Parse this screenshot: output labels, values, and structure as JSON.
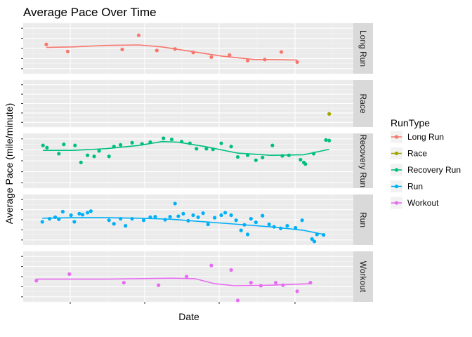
{
  "chart_data": {
    "type": "scatter",
    "title": "Average Pace Over Time",
    "xlabel": "Date",
    "ylabel": "Average Pace (mile/minute)",
    "xlim": [
      0,
      1
    ],
    "ylim": [
      0,
      1
    ],
    "grid": true,
    "legend": {
      "title": "RunType",
      "position": "right"
    },
    "facets": [
      "Long Run",
      "Race",
      "Recovery Run",
      "Run",
      "Workout"
    ],
    "series": [
      {
        "name": "Long Run",
        "facet": "Long Run",
        "color": "#F8766D",
        "points": [
          [
            0.07,
            0.58
          ],
          [
            0.135,
            0.44
          ],
          [
            0.3,
            0.48
          ],
          [
            0.35,
            0.76
          ],
          [
            0.405,
            0.46
          ],
          [
            0.46,
            0.49
          ],
          [
            0.515,
            0.42
          ],
          [
            0.57,
            0.33
          ],
          [
            0.625,
            0.37
          ],
          [
            0.68,
            0.26
          ],
          [
            0.732,
            0.28
          ],
          [
            0.782,
            0.43
          ],
          [
            0.83,
            0.23
          ]
        ],
        "smooth": [
          [
            0.07,
            0.52
          ],
          [
            0.15,
            0.53
          ],
          [
            0.25,
            0.56
          ],
          [
            0.35,
            0.57
          ],
          [
            0.42,
            0.53
          ],
          [
            0.5,
            0.45
          ],
          [
            0.6,
            0.35
          ],
          [
            0.7,
            0.28
          ],
          [
            0.76,
            0.28
          ],
          [
            0.83,
            0.27
          ]
        ]
      },
      {
        "name": "Race",
        "facet": "Race",
        "color": "#A3A500",
        "points": [
          [
            0.927,
            0.28
          ]
        ],
        "smooth": []
      },
      {
        "name": "Recovery Run",
        "facet": "Recovery Run",
        "color": "#00BF7D",
        "points": [
          [
            0.06,
            0.78
          ],
          [
            0.072,
            0.74
          ],
          [
            0.108,
            0.63
          ],
          [
            0.123,
            0.8
          ],
          [
            0.157,
            0.78
          ],
          [
            0.175,
            0.47
          ],
          [
            0.195,
            0.6
          ],
          [
            0.215,
            0.58
          ],
          [
            0.23,
            0.68
          ],
          [
            0.26,
            0.58
          ],
          [
            0.275,
            0.76
          ],
          [
            0.295,
            0.79
          ],
          [
            0.33,
            0.83
          ],
          [
            0.36,
            0.81
          ],
          [
            0.385,
            0.84
          ],
          [
            0.425,
            0.91
          ],
          [
            0.45,
            0.89
          ],
          [
            0.48,
            0.85
          ],
          [
            0.505,
            0.82
          ],
          [
            0.525,
            0.72
          ],
          [
            0.555,
            0.72
          ],
          [
            0.575,
            0.71
          ],
          [
            0.6,
            0.82
          ],
          [
            0.63,
            0.76
          ],
          [
            0.65,
            0.57
          ],
          [
            0.68,
            0.6
          ],
          [
            0.705,
            0.51
          ],
          [
            0.725,
            0.56
          ],
          [
            0.755,
            0.78
          ],
          [
            0.785,
            0.59
          ],
          [
            0.805,
            0.6
          ],
          [
            0.84,
            0.52
          ],
          [
            0.85,
            0.47
          ],
          [
            0.855,
            0.44
          ],
          [
            0.88,
            0.63
          ],
          [
            0.917,
            0.88
          ],
          [
            0.927,
            0.87
          ]
        ],
        "smooth": [
          [
            0.06,
            0.69
          ],
          [
            0.15,
            0.69
          ],
          [
            0.25,
            0.72
          ],
          [
            0.35,
            0.78
          ],
          [
            0.42,
            0.85
          ],
          [
            0.47,
            0.84
          ],
          [
            0.55,
            0.76
          ],
          [
            0.65,
            0.64
          ],
          [
            0.75,
            0.6
          ],
          [
            0.85,
            0.61
          ],
          [
            0.927,
            0.71
          ]
        ]
      },
      {
        "name": "Run",
        "facet": "Run",
        "color": "#00B0F6",
        "points": [
          [
            0.058,
            0.46
          ],
          [
            0.08,
            0.52
          ],
          [
            0.097,
            0.55
          ],
          [
            0.108,
            0.51
          ],
          [
            0.12,
            0.66
          ],
          [
            0.145,
            0.59
          ],
          [
            0.155,
            0.46
          ],
          [
            0.17,
            0.62
          ],
          [
            0.18,
            0.6
          ],
          [
            0.195,
            0.64
          ],
          [
            0.205,
            0.67
          ],
          [
            0.26,
            0.49
          ],
          [
            0.275,
            0.42
          ],
          [
            0.295,
            0.52
          ],
          [
            0.31,
            0.38
          ],
          [
            0.33,
            0.52
          ],
          [
            0.365,
            0.49
          ],
          [
            0.385,
            0.55
          ],
          [
            0.4,
            0.56
          ],
          [
            0.43,
            0.5
          ],
          [
            0.445,
            0.56
          ],
          [
            0.46,
            0.82
          ],
          [
            0.47,
            0.57
          ],
          [
            0.485,
            0.62
          ],
          [
            0.5,
            0.48
          ],
          [
            0.515,
            0.59
          ],
          [
            0.53,
            0.55
          ],
          [
            0.545,
            0.63
          ],
          [
            0.56,
            0.41
          ],
          [
            0.58,
            0.54
          ],
          [
            0.6,
            0.59
          ],
          [
            0.612,
            0.64
          ],
          [
            0.63,
            0.59
          ],
          [
            0.645,
            0.49
          ],
          [
            0.66,
            0.29
          ],
          [
            0.67,
            0.4
          ],
          [
            0.68,
            0.21
          ],
          [
            0.69,
            0.52
          ],
          [
            0.705,
            0.45
          ],
          [
            0.725,
            0.58
          ],
          [
            0.745,
            0.41
          ],
          [
            0.76,
            0.36
          ],
          [
            0.78,
            0.33
          ],
          [
            0.8,
            0.38
          ],
          [
            0.825,
            0.34
          ],
          [
            0.845,
            0.49
          ],
          [
            0.875,
            0.12
          ],
          [
            0.882,
            0.07
          ],
          [
            0.89,
            0.21
          ],
          [
            0.91,
            0.2
          ]
        ],
        "smooth": [
          [
            0.058,
            0.53
          ],
          [
            0.15,
            0.54
          ],
          [
            0.25,
            0.54
          ],
          [
            0.35,
            0.53
          ],
          [
            0.45,
            0.51
          ],
          [
            0.55,
            0.46
          ],
          [
            0.65,
            0.41
          ],
          [
            0.75,
            0.36
          ],
          [
            0.85,
            0.29
          ],
          [
            0.91,
            0.21
          ]
        ]
      },
      {
        "name": "Workout",
        "facet": "Workout",
        "color": "#E76BF3",
        "points": [
          [
            0.04,
            0.42
          ],
          [
            0.14,
            0.55
          ],
          [
            0.305,
            0.38
          ],
          [
            0.41,
            0.33
          ],
          [
            0.495,
            0.5
          ],
          [
            0.57,
            0.72
          ],
          [
            0.63,
            0.63
          ],
          [
            0.65,
            0.03
          ],
          [
            0.69,
            0.38
          ],
          [
            0.72,
            0.32
          ],
          [
            0.765,
            0.38
          ],
          [
            0.787,
            0.33
          ],
          [
            0.83,
            0.21
          ],
          [
            0.87,
            0.38
          ]
        ],
        "smooth": [
          [
            0.04,
            0.45
          ],
          [
            0.15,
            0.45
          ],
          [
            0.25,
            0.45
          ],
          [
            0.35,
            0.46
          ],
          [
            0.45,
            0.47
          ],
          [
            0.52,
            0.46
          ],
          [
            0.58,
            0.36
          ],
          [
            0.64,
            0.32
          ],
          [
            0.75,
            0.33
          ],
          [
            0.87,
            0.36
          ]
        ]
      }
    ]
  }
}
